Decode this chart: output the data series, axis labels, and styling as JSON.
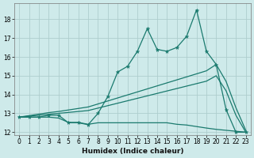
{
  "xlabel": "Humidex (Indice chaleur)",
  "bg_color": "#ceeaea",
  "grid_color": "#aecece",
  "line_color": "#1a7a6e",
  "x": [
    0,
    1,
    2,
    3,
    4,
    5,
    6,
    7,
    8,
    9,
    10,
    11,
    12,
    13,
    14,
    15,
    16,
    17,
    18,
    19,
    20,
    21,
    22,
    23
  ],
  "y_main": [
    12.8,
    12.8,
    12.8,
    12.9,
    12.9,
    12.5,
    12.5,
    12.4,
    13.0,
    13.9,
    15.2,
    15.5,
    16.3,
    17.5,
    16.4,
    16.3,
    16.5,
    17.1,
    18.5,
    16.3,
    15.6,
    13.2,
    12.0,
    12.0
  ],
  "y_line1": [
    12.8,
    12.88,
    12.96,
    13.04,
    13.1,
    13.18,
    13.26,
    13.34,
    13.5,
    13.66,
    13.82,
    13.98,
    14.14,
    14.3,
    14.46,
    14.62,
    14.78,
    14.94,
    15.1,
    15.26,
    15.6,
    14.7,
    13.3,
    12.1
  ],
  "y_line2": [
    12.8,
    12.85,
    12.9,
    12.95,
    13.0,
    13.05,
    13.1,
    13.15,
    13.28,
    13.41,
    13.54,
    13.67,
    13.8,
    13.93,
    14.06,
    14.19,
    14.32,
    14.45,
    14.58,
    14.71,
    15.0,
    14.2,
    12.9,
    12.0
  ],
  "y_flat": [
    12.8,
    12.8,
    12.8,
    12.8,
    12.75,
    12.52,
    12.52,
    12.42,
    12.5,
    12.5,
    12.5,
    12.5,
    12.5,
    12.5,
    12.5,
    12.5,
    12.42,
    12.38,
    12.3,
    12.22,
    12.15,
    12.1,
    12.05,
    12.0
  ],
  "ylim": [
    11.85,
    18.85
  ],
  "xlim": [
    -0.5,
    23.5
  ],
  "yticks": [
    12,
    13,
    14,
    15,
    16,
    17,
    18
  ],
  "xticks": [
    0,
    1,
    2,
    3,
    4,
    5,
    6,
    7,
    8,
    9,
    10,
    11,
    12,
    13,
    14,
    15,
    16,
    17,
    18,
    19,
    20,
    21,
    22,
    23
  ]
}
